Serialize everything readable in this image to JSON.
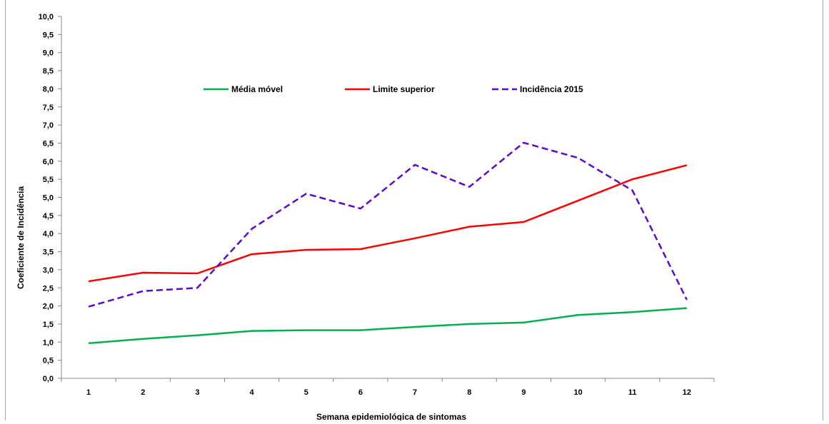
{
  "chart_data": {
    "type": "line",
    "title": "",
    "xlabel": "Semana epidemiológica de sintomas",
    "ylabel": "Coeficiente de Incidência",
    "categories": [
      "1",
      "2",
      "3",
      "4",
      "5",
      "6",
      "7",
      "8",
      "9",
      "10",
      "11",
      "12"
    ],
    "ylim": [
      0,
      10
    ],
    "ytick_step": 0.5,
    "ytick_labels": [
      "0,0",
      "0,5",
      "1,0",
      "1,5",
      "2,0",
      "2,5",
      "3,0",
      "3,5",
      "4,0",
      "4,5",
      "5,0",
      "5,5",
      "6,0",
      "6,5",
      "7,0",
      "7,5",
      "8,0",
      "8,5",
      "9,0",
      "9,5",
      "10,0"
    ],
    "grid": false,
    "legend_position": "top",
    "series": [
      {
        "name": "Média móvel",
        "color": "#00b050",
        "dash": "solid",
        "values": [
          0.97,
          1.09,
          1.19,
          1.31,
          1.33,
          1.33,
          1.42,
          1.5,
          1.54,
          1.75,
          1.83,
          1.94
        ]
      },
      {
        "name": "Limite superior",
        "color": "#ff0000",
        "dash": "solid",
        "values": [
          2.68,
          2.92,
          2.9,
          3.43,
          3.55,
          3.57,
          3.87,
          4.19,
          4.32,
          4.91,
          5.5,
          5.89
        ]
      },
      {
        "name": "Incidência 2015",
        "color": "#5b0cc9",
        "dash": "dashed",
        "values": [
          1.98,
          2.41,
          2.5,
          4.13,
          5.1,
          4.69,
          5.9,
          5.29,
          6.51,
          6.09,
          5.19,
          2.17
        ]
      }
    ]
  }
}
